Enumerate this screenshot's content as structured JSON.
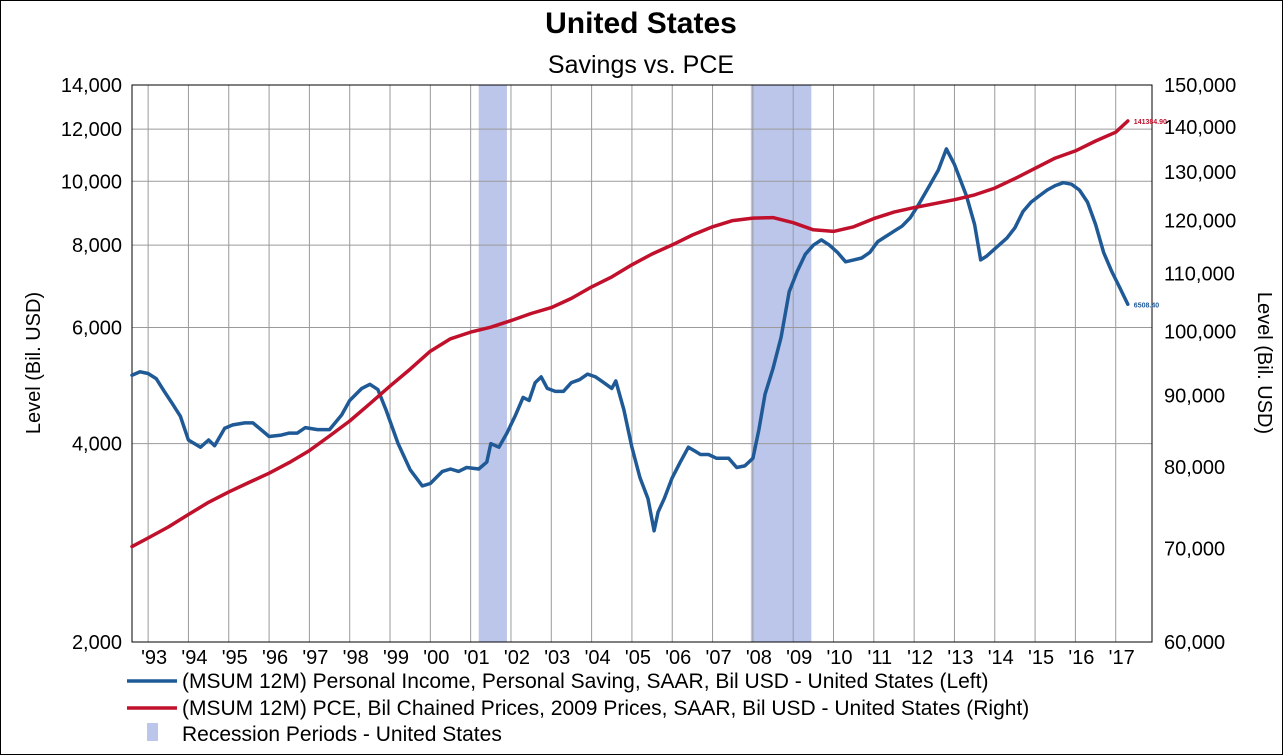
{
  "chart_data": {
    "type": "line",
    "title": "United States",
    "subtitle": "Savings vs. PCE",
    "ylabel_left": "Level (Bil. USD)",
    "ylabel_right": "Level (Bil. USD)",
    "yscale": "log",
    "ylim_left": [
      2000,
      14000
    ],
    "ylim_right": [
      60000,
      150000
    ],
    "left_ticks": [
      {
        "value": 2000,
        "label": "2,000"
      },
      {
        "value": 4000,
        "label": "4,000"
      },
      {
        "value": 6000,
        "label": "6,000"
      },
      {
        "value": 8000,
        "label": "8,000"
      },
      {
        "value": 10000,
        "label": "10,000"
      },
      {
        "value": 12000,
        "label": "12,000"
      },
      {
        "value": 14000,
        "label": "14,000"
      }
    ],
    "right_ticks": [
      {
        "value": 60000,
        "label": "60,000"
      },
      {
        "value": 70000,
        "label": "70,000"
      },
      {
        "value": 80000,
        "label": "80,000"
      },
      {
        "value": 90000,
        "label": "90,000"
      },
      {
        "value": 100000,
        "label": "100,000"
      },
      {
        "value": 110000,
        "label": "110,000"
      },
      {
        "value": 120000,
        "label": "120,000"
      },
      {
        "value": 130000,
        "label": "130,000"
      },
      {
        "value": 140000,
        "label": "140,000"
      },
      {
        "value": 150000,
        "label": "150,000"
      }
    ],
    "xlim": [
      1992.6,
      2017.9
    ],
    "x_ticks": [
      {
        "value": 1993,
        "label": "'93"
      },
      {
        "value": 1994,
        "label": "'94"
      },
      {
        "value": 1995,
        "label": "'95"
      },
      {
        "value": 1996,
        "label": "'96"
      },
      {
        "value": 1997,
        "label": "'97"
      },
      {
        "value": 1998,
        "label": "'98"
      },
      {
        "value": 1999,
        "label": "'99"
      },
      {
        "value": 2000,
        "label": "'00"
      },
      {
        "value": 2001,
        "label": "'01"
      },
      {
        "value": 2002,
        "label": "'02"
      },
      {
        "value": 2003,
        "label": "'03"
      },
      {
        "value": 2004,
        "label": "'04"
      },
      {
        "value": 2005,
        "label": "'05"
      },
      {
        "value": 2006,
        "label": "'06"
      },
      {
        "value": 2007,
        "label": "'07"
      },
      {
        "value": 2008,
        "label": "'08"
      },
      {
        "value": 2009,
        "label": "'09"
      },
      {
        "value": 2010,
        "label": "'10"
      },
      {
        "value": 2011,
        "label": "'11"
      },
      {
        "value": 2012,
        "label": "'12"
      },
      {
        "value": 2013,
        "label": "'13"
      },
      {
        "value": 2014,
        "label": "'14"
      },
      {
        "value": 2015,
        "label": "'15"
      },
      {
        "value": 2016,
        "label": "'16"
      },
      {
        "value": 2017,
        "label": "'17"
      }
    ],
    "recessions": [
      {
        "start": 2001.2,
        "end": 2001.9
      },
      {
        "start": 2007.95,
        "end": 2009.45
      }
    ],
    "series": [
      {
        "name": "(MSUM 12M) Personal Income, Personal Saving, SAAR, Bil USD - United States  (Left)",
        "axis": "left",
        "color": "#1f5a96",
        "end_label": "6508.40",
        "points": [
          [
            1992.6,
            5080
          ],
          [
            1992.8,
            5140
          ],
          [
            1993.0,
            5110
          ],
          [
            1993.2,
            5020
          ],
          [
            1993.4,
            4800
          ],
          [
            1993.6,
            4600
          ],
          [
            1993.8,
            4400
          ],
          [
            1994.0,
            4050
          ],
          [
            1994.3,
            3950
          ],
          [
            1994.5,
            4050
          ],
          [
            1994.65,
            3970
          ],
          [
            1994.9,
            4220
          ],
          [
            1995.1,
            4270
          ],
          [
            1995.4,
            4300
          ],
          [
            1995.6,
            4300
          ],
          [
            1995.8,
            4200
          ],
          [
            1996.0,
            4100
          ],
          [
            1996.3,
            4120
          ],
          [
            1996.5,
            4150
          ],
          [
            1996.7,
            4150
          ],
          [
            1996.9,
            4230
          ],
          [
            1997.2,
            4200
          ],
          [
            1997.5,
            4200
          ],
          [
            1997.8,
            4420
          ],
          [
            1998.0,
            4650
          ],
          [
            1998.3,
            4850
          ],
          [
            1998.5,
            4920
          ],
          [
            1998.7,
            4830
          ],
          [
            1998.9,
            4500
          ],
          [
            1999.2,
            4000
          ],
          [
            1999.5,
            3650
          ],
          [
            1999.8,
            3450
          ],
          [
            2000.0,
            3480
          ],
          [
            2000.3,
            3630
          ],
          [
            2000.5,
            3660
          ],
          [
            2000.7,
            3630
          ],
          [
            2000.9,
            3680
          ],
          [
            2001.2,
            3660
          ],
          [
            2001.4,
            3750
          ],
          [
            2001.5,
            4000
          ],
          [
            2001.7,
            3950
          ],
          [
            2001.9,
            4150
          ],
          [
            2002.1,
            4400
          ],
          [
            2002.3,
            4700
          ],
          [
            2002.45,
            4650
          ],
          [
            2002.6,
            4950
          ],
          [
            2002.75,
            5050
          ],
          [
            2002.9,
            4850
          ],
          [
            2003.1,
            4800
          ],
          [
            2003.3,
            4800
          ],
          [
            2003.5,
            4950
          ],
          [
            2003.7,
            5000
          ],
          [
            2003.9,
            5100
          ],
          [
            2004.1,
            5050
          ],
          [
            2004.3,
            4950
          ],
          [
            2004.5,
            4850
          ],
          [
            2004.6,
            4980
          ],
          [
            2004.8,
            4500
          ],
          [
            2005.0,
            3950
          ],
          [
            2005.2,
            3550
          ],
          [
            2005.4,
            3300
          ],
          [
            2005.55,
            2950
          ],
          [
            2005.65,
            3150
          ],
          [
            2005.8,
            3300
          ],
          [
            2006.0,
            3550
          ],
          [
            2006.2,
            3750
          ],
          [
            2006.4,
            3950
          ],
          [
            2006.55,
            3900
          ],
          [
            2006.7,
            3850
          ],
          [
            2006.9,
            3850
          ],
          [
            2007.1,
            3800
          ],
          [
            2007.4,
            3800
          ],
          [
            2007.6,
            3680
          ],
          [
            2007.8,
            3700
          ],
          [
            2008.0,
            3800
          ],
          [
            2008.15,
            4200
          ],
          [
            2008.3,
            4750
          ],
          [
            2008.5,
            5200
          ],
          [
            2008.7,
            5800
          ],
          [
            2008.9,
            6800
          ],
          [
            2009.1,
            7300
          ],
          [
            2009.3,
            7750
          ],
          [
            2009.5,
            8000
          ],
          [
            2009.7,
            8150
          ],
          [
            2009.9,
            8000
          ],
          [
            2010.1,
            7800
          ],
          [
            2010.3,
            7550
          ],
          [
            2010.5,
            7600
          ],
          [
            2010.7,
            7650
          ],
          [
            2010.9,
            7800
          ],
          [
            2011.1,
            8100
          ],
          [
            2011.3,
            8250
          ],
          [
            2011.5,
            8400
          ],
          [
            2011.7,
            8550
          ],
          [
            2011.9,
            8800
          ],
          [
            2012.1,
            9200
          ],
          [
            2012.4,
            9900
          ],
          [
            2012.6,
            10400
          ],
          [
            2012.8,
            11200
          ],
          [
            2013.0,
            10600
          ],
          [
            2013.3,
            9500
          ],
          [
            2013.5,
            8600
          ],
          [
            2013.65,
            7600
          ],
          [
            2013.8,
            7700
          ],
          [
            2014.0,
            7900
          ],
          [
            2014.3,
            8200
          ],
          [
            2014.5,
            8500
          ],
          [
            2014.7,
            9000
          ],
          [
            2014.9,
            9300
          ],
          [
            2015.1,
            9500
          ],
          [
            2015.3,
            9700
          ],
          [
            2015.5,
            9850
          ],
          [
            2015.7,
            9950
          ],
          [
            2015.9,
            9900
          ],
          [
            2016.1,
            9700
          ],
          [
            2016.3,
            9300
          ],
          [
            2016.5,
            8600
          ],
          [
            2016.7,
            7800
          ],
          [
            2016.9,
            7300
          ],
          [
            2017.1,
            6900
          ],
          [
            2017.3,
            6508
          ]
        ]
      },
      {
        "name": "(MSUM 12M) PCE, Bil Chained Prices, 2009 Prices, SAAR, Bil USD - United States  (Right)",
        "axis": "right",
        "color": "#c0102c",
        "end_label": "141384.90",
        "points": [
          [
            1992.6,
            70200
          ],
          [
            1993.0,
            71200
          ],
          [
            1993.5,
            72500
          ],
          [
            1994.0,
            74000
          ],
          [
            1994.5,
            75500
          ],
          [
            1995.0,
            76800
          ],
          [
            1995.5,
            78000
          ],
          [
            1996.0,
            79200
          ],
          [
            1996.5,
            80600
          ],
          [
            1997.0,
            82200
          ],
          [
            1997.5,
            84200
          ],
          [
            1998.0,
            86300
          ],
          [
            1998.5,
            88800
          ],
          [
            1999.0,
            91400
          ],
          [
            1999.5,
            94000
          ],
          [
            2000.0,
            96800
          ],
          [
            2000.5,
            98800
          ],
          [
            2001.0,
            99900
          ],
          [
            2001.5,
            100700
          ],
          [
            2002.0,
            101800
          ],
          [
            2002.5,
            103000
          ],
          [
            2003.0,
            104000
          ],
          [
            2003.5,
            105600
          ],
          [
            2004.0,
            107600
          ],
          [
            2004.5,
            109400
          ],
          [
            2005.0,
            111600
          ],
          [
            2005.5,
            113600
          ],
          [
            2006.0,
            115300
          ],
          [
            2006.5,
            117200
          ],
          [
            2007.0,
            118800
          ],
          [
            2007.5,
            120000
          ],
          [
            2008.0,
            120500
          ],
          [
            2008.5,
            120600
          ],
          [
            2009.0,
            119600
          ],
          [
            2009.5,
            118200
          ],
          [
            2010.0,
            117900
          ],
          [
            2010.5,
            118800
          ],
          [
            2011.0,
            120400
          ],
          [
            2011.5,
            121700
          ],
          [
            2012.0,
            122600
          ],
          [
            2012.5,
            123400
          ],
          [
            2013.0,
            124200
          ],
          [
            2013.5,
            125200
          ],
          [
            2014.0,
            126600
          ],
          [
            2014.5,
            128600
          ],
          [
            2015.0,
            130800
          ],
          [
            2015.5,
            133000
          ],
          [
            2016.0,
            134600
          ],
          [
            2016.5,
            136800
          ],
          [
            2017.0,
            138800
          ],
          [
            2017.3,
            141385
          ]
        ]
      }
    ],
    "legend": [
      {
        "label": "(MSUM 12M) Personal Income, Personal Saving, SAAR, Bil USD - United States  (Left)",
        "kind": "line",
        "color": "#1f5a96"
      },
      {
        "label": "(MSUM 12M) PCE, Bil Chained Prices, 2009 Prices, SAAR, Bil USD - United States  (Right)",
        "kind": "line",
        "color": "#c0102c"
      },
      {
        "label": "Recession Periods - United States",
        "kind": "box",
        "color": "#bcc6eb"
      }
    ],
    "recession_color": "#bcc6eb",
    "grid": true,
    "legend_position": "bottom"
  }
}
